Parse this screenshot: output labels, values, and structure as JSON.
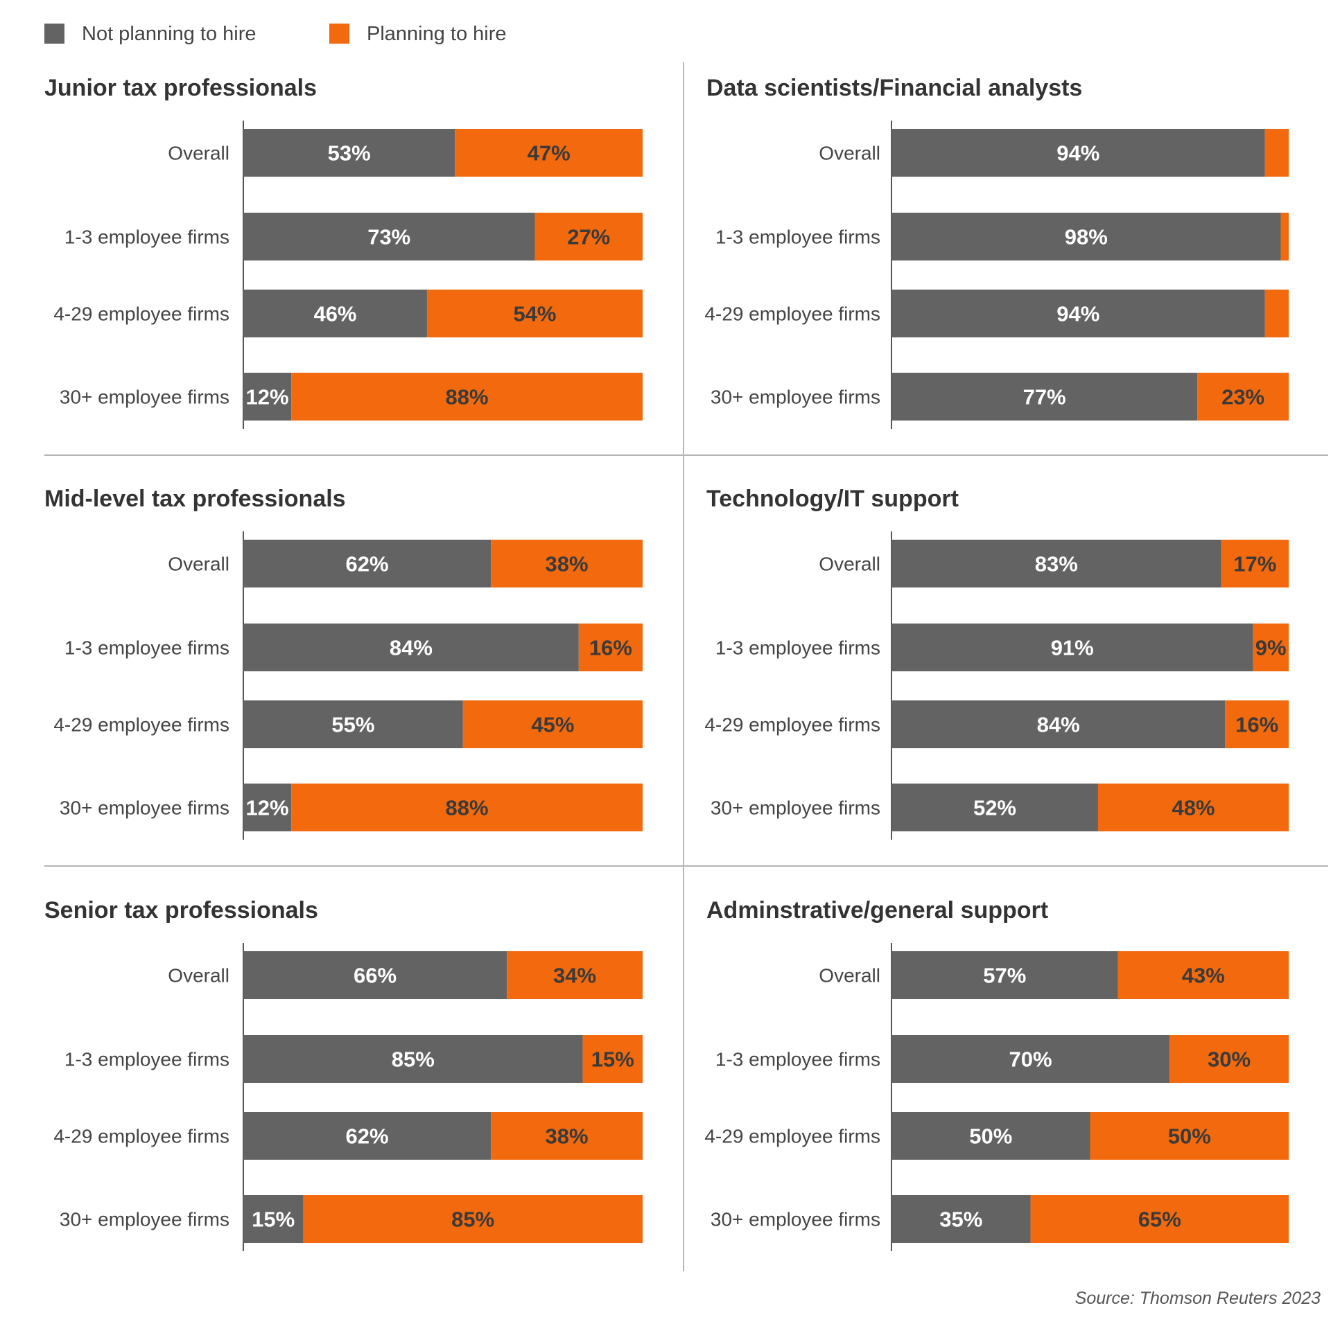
{
  "legend": {
    "not_planning": "Not planning to hire",
    "planning": "Planning to hire"
  },
  "colors": {
    "not_planning": "#636363",
    "planning": "#F26A0D",
    "label_on_gray": "#ffffff",
    "label_on_orange": "#3a3a3a",
    "divider": "#b5b5b5",
    "axis": "#555555"
  },
  "source": "Source: Thomson Reuters 2023",
  "chart_data": [
    {
      "type": "bar",
      "stacked": true,
      "orientation": "horizontal",
      "title": "Junior tax professionals",
      "categories": [
        "Overall",
        "1-3 employee firms",
        "4-29 employee firms",
        "30+ employee firms"
      ],
      "series": [
        {
          "name": "Not planning to hire",
          "values": [
            53,
            73,
            46,
            12
          ],
          "labels": [
            "53%",
            "73%",
            "46%",
            "12%"
          ]
        },
        {
          "name": "Planning to hire",
          "values": [
            47,
            27,
            54,
            88
          ],
          "labels": [
            "47%",
            "27%",
            "54%",
            "88%"
          ]
        }
      ],
      "xlim": [
        0,
        100
      ]
    },
    {
      "type": "bar",
      "stacked": true,
      "orientation": "horizontal",
      "title": "Data scientists/Financial analysts",
      "categories": [
        "Overall",
        "1-3 employee firms",
        "4-29 employee firms",
        "30+ employee firms"
      ],
      "series": [
        {
          "name": "Not planning to hire",
          "values": [
            94,
            98,
            94,
            77
          ],
          "labels": [
            "94%",
            "98%",
            "94%",
            "77%"
          ]
        },
        {
          "name": "Planning to hire",
          "values": [
            6,
            2,
            6,
            23
          ],
          "labels": [
            "",
            "",
            "",
            "23%"
          ]
        }
      ],
      "xlim": [
        0,
        100
      ]
    },
    {
      "type": "bar",
      "stacked": true,
      "orientation": "horizontal",
      "title": "Mid-level tax professionals",
      "categories": [
        "Overall",
        "1-3 employee firms",
        "4-29 employee firms",
        "30+ employee firms"
      ],
      "series": [
        {
          "name": "Not planning to hire",
          "values": [
            62,
            84,
            55,
            12
          ],
          "labels": [
            "62%",
            "84%",
            "55%",
            "12%"
          ]
        },
        {
          "name": "Planning to hire",
          "values": [
            38,
            16,
            45,
            88
          ],
          "labels": [
            "38%",
            "16%",
            "45%",
            "88%"
          ]
        }
      ],
      "xlim": [
        0,
        100
      ]
    },
    {
      "type": "bar",
      "stacked": true,
      "orientation": "horizontal",
      "title": "Technology/IT support",
      "categories": [
        "Overall",
        "1-3 employee firms",
        "4-29 employee firms",
        "30+ employee firms"
      ],
      "series": [
        {
          "name": "Not planning to hire",
          "values": [
            83,
            91,
            84,
            52
          ],
          "labels": [
            "83%",
            "91%",
            "84%",
            "52%"
          ]
        },
        {
          "name": "Planning to hire",
          "values": [
            17,
            9,
            16,
            48
          ],
          "labels": [
            "17%",
            "9%",
            "16%",
            "48%"
          ]
        }
      ],
      "xlim": [
        0,
        100
      ]
    },
    {
      "type": "bar",
      "stacked": true,
      "orientation": "horizontal",
      "title": "Senior tax professionals",
      "categories": [
        "Overall",
        "1-3 employee firms",
        "4-29 employee firms",
        "30+ employee firms"
      ],
      "series": [
        {
          "name": "Not planning to hire",
          "values": [
            66,
            85,
            62,
            15
          ],
          "labels": [
            "66%",
            "85%",
            "62%",
            "15%"
          ]
        },
        {
          "name": "Planning to hire",
          "values": [
            34,
            15,
            38,
            85
          ],
          "labels": [
            "34%",
            "15%",
            "38%",
            "85%"
          ]
        }
      ],
      "xlim": [
        0,
        100
      ]
    },
    {
      "type": "bar",
      "stacked": true,
      "orientation": "horizontal",
      "title": "Adminstrative/general support",
      "categories": [
        "Overall",
        "1-3 employee firms",
        "4-29 employee firms",
        "30+ employee firms"
      ],
      "series": [
        {
          "name": "Not planning to hire",
          "values": [
            57,
            70,
            50,
            35
          ],
          "labels": [
            "57%",
            "70%",
            "50%",
            "35%"
          ]
        },
        {
          "name": "Planning to hire",
          "values": [
            43,
            30,
            50,
            65
          ],
          "labels": [
            "43%",
            "30%",
            "50%",
            "65%"
          ]
        }
      ],
      "xlim": [
        0,
        100
      ]
    }
  ]
}
